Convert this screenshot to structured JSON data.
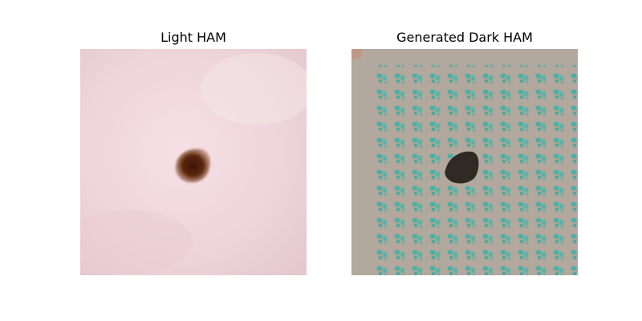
{
  "panels": [
    {
      "title": "Light HAM"
    },
    {
      "title": "Generated Dark HAM"
    }
  ],
  "colors": {
    "light_skin": "#f1d6dc",
    "light_lesion": "#5a2608",
    "dark_background": "#b3a89e",
    "dark_pattern": "#2fb3a3",
    "dark_lesion": "#2f2a24"
  }
}
